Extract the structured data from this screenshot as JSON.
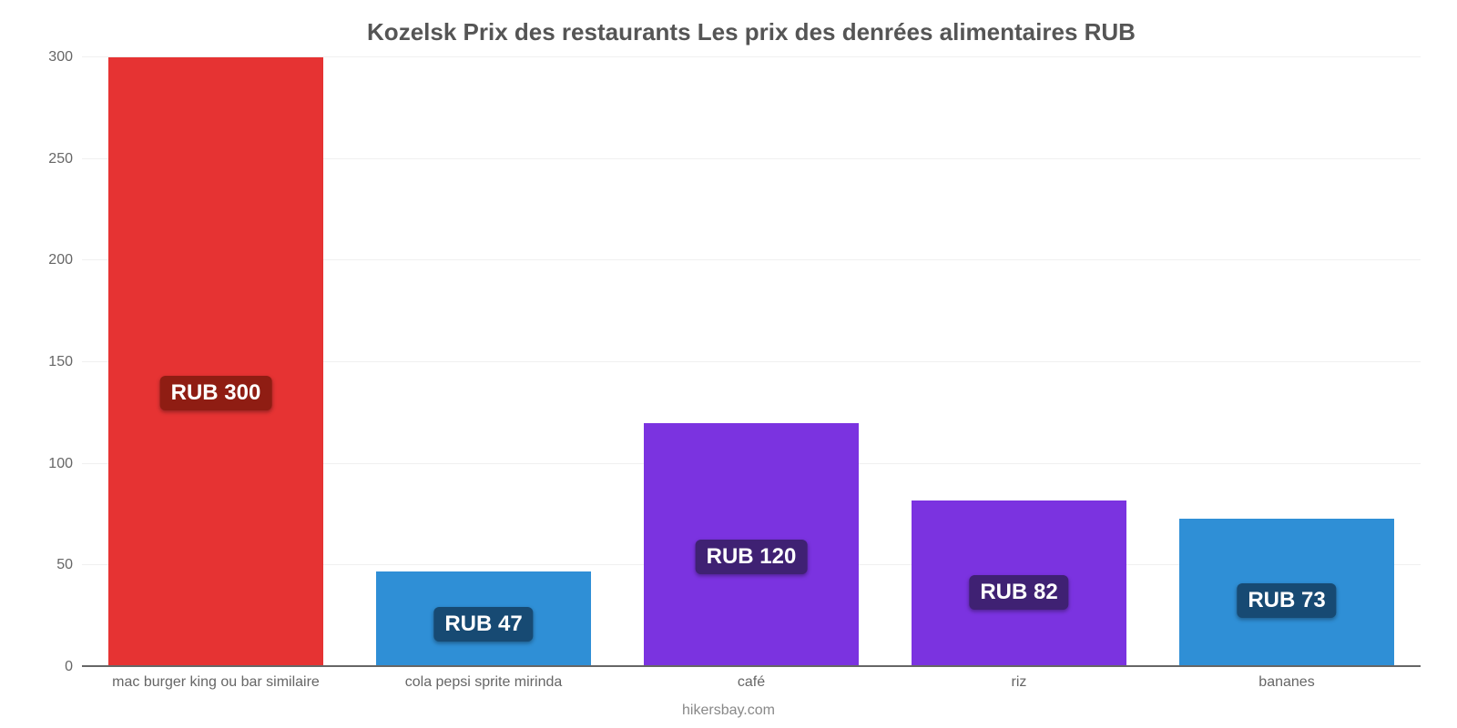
{
  "chart": {
    "type": "bar",
    "title": "Kozelsk Prix des restaurants Les prix des denrées alimentaires RUB",
    "title_fontsize": 26,
    "title_color": "#555555",
    "attribution": "hikersbay.com",
    "attribution_color": "#888888",
    "background_color": "#ffffff",
    "grid_color": "#f0f0f0",
    "baseline_color": "#666666",
    "axis_label_color": "#666666",
    "axis_label_fontsize": 16,
    "ylim": [
      0,
      300
    ],
    "ytick_step": 50,
    "yticks": [
      0,
      50,
      100,
      150,
      200,
      250,
      300
    ],
    "bar_width_pct": 80,
    "value_label_fontsize": 24,
    "categories": [
      "mac burger king ou bar similaire",
      "cola pepsi sprite mirinda",
      "café",
      "riz",
      "bananes"
    ],
    "values": [
      300,
      47,
      120,
      82,
      73
    ],
    "value_labels": [
      "RUB 300",
      "RUB 47",
      "RUB 120",
      "RUB 82",
      "RUB 73"
    ],
    "bar_colors": [
      "#e63333",
      "#2f8fd6",
      "#7b33e0",
      "#7b33e0",
      "#2f8fd6"
    ],
    "badge_colors": [
      "#8f1d13",
      "#174a73",
      "#3f2173",
      "#3f2173",
      "#174a73"
    ],
    "badge_text_color": "#ffffff"
  }
}
